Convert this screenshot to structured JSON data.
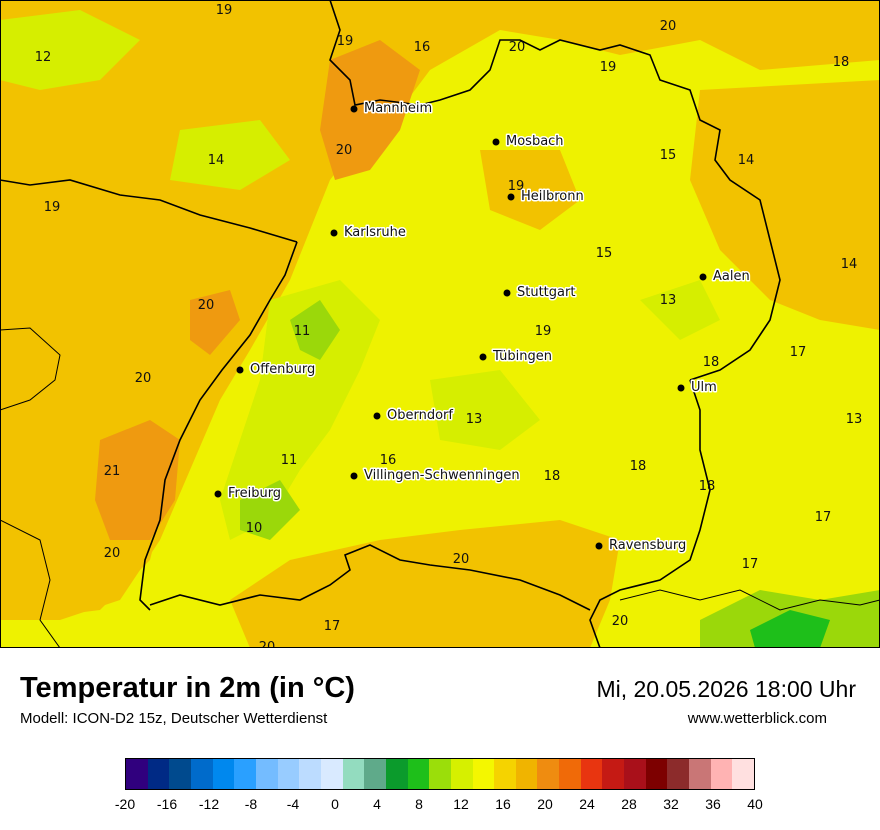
{
  "header": {
    "title": "Temperatur in 2m (in °C)",
    "model": "Modell: ICON-D2 15z, Deutscher Wetterdienst",
    "datetime": "Mi, 20.05.2026 18:00 Uhr",
    "website": "www.wetterblick.com"
  },
  "cities": [
    {
      "name": "Mannheim"
    },
    {
      "name": "Mosbach"
    },
    {
      "name": "Heilbronn"
    },
    {
      "name": "Karlsruhe"
    },
    {
      "name": "Aalen"
    },
    {
      "name": "Stuttgart"
    },
    {
      "name": "Tübingen"
    },
    {
      "name": "Offenburg"
    },
    {
      "name": "Ulm"
    },
    {
      "name": "Oberndorf"
    },
    {
      "name": "Villingen-Schwenningen"
    },
    {
      "name": "Freiburg"
    },
    {
      "name": "Ravensburg"
    }
  ],
  "temperature_labels": [
    "19",
    "16",
    "20",
    "20",
    "19",
    "18",
    "12",
    "20",
    "15",
    "14",
    "14",
    "19",
    "19",
    "15",
    "14",
    "19",
    "20",
    "13",
    "11",
    "19",
    "17",
    "20",
    "18",
    "13",
    "21",
    "13",
    "11",
    "16",
    "18",
    "18",
    "18",
    "10",
    "17",
    "20",
    "20",
    "17",
    "17",
    "20",
    "20"
  ],
  "legend": {
    "colors": [
      "#30007e",
      "#002a85",
      "#004a8e",
      "#006bcb",
      "#0088ee",
      "#2aa0ff",
      "#74bcff",
      "#98ccff",
      "#bcdcff",
      "#d9eaff",
      "#93dcbf",
      "#5faa8a",
      "#0b9b2c",
      "#1ebf1a",
      "#9bde0a",
      "#d6f000",
      "#f4f700",
      "#f5d300",
      "#f0b400",
      "#ef8c10",
      "#f06a08",
      "#e83510",
      "#c51a14",
      "#a9101a",
      "#7d0000",
      "#8c2b2b",
      "#c97676",
      "#ffb3b3",
      "#ffe0e0"
    ],
    "ticks": [
      "-20",
      "-16",
      "-12",
      "-8",
      "-4",
      "0",
      "4",
      "8",
      "12",
      "16",
      "20",
      "24",
      "28",
      "32",
      "36",
      "40"
    ]
  }
}
